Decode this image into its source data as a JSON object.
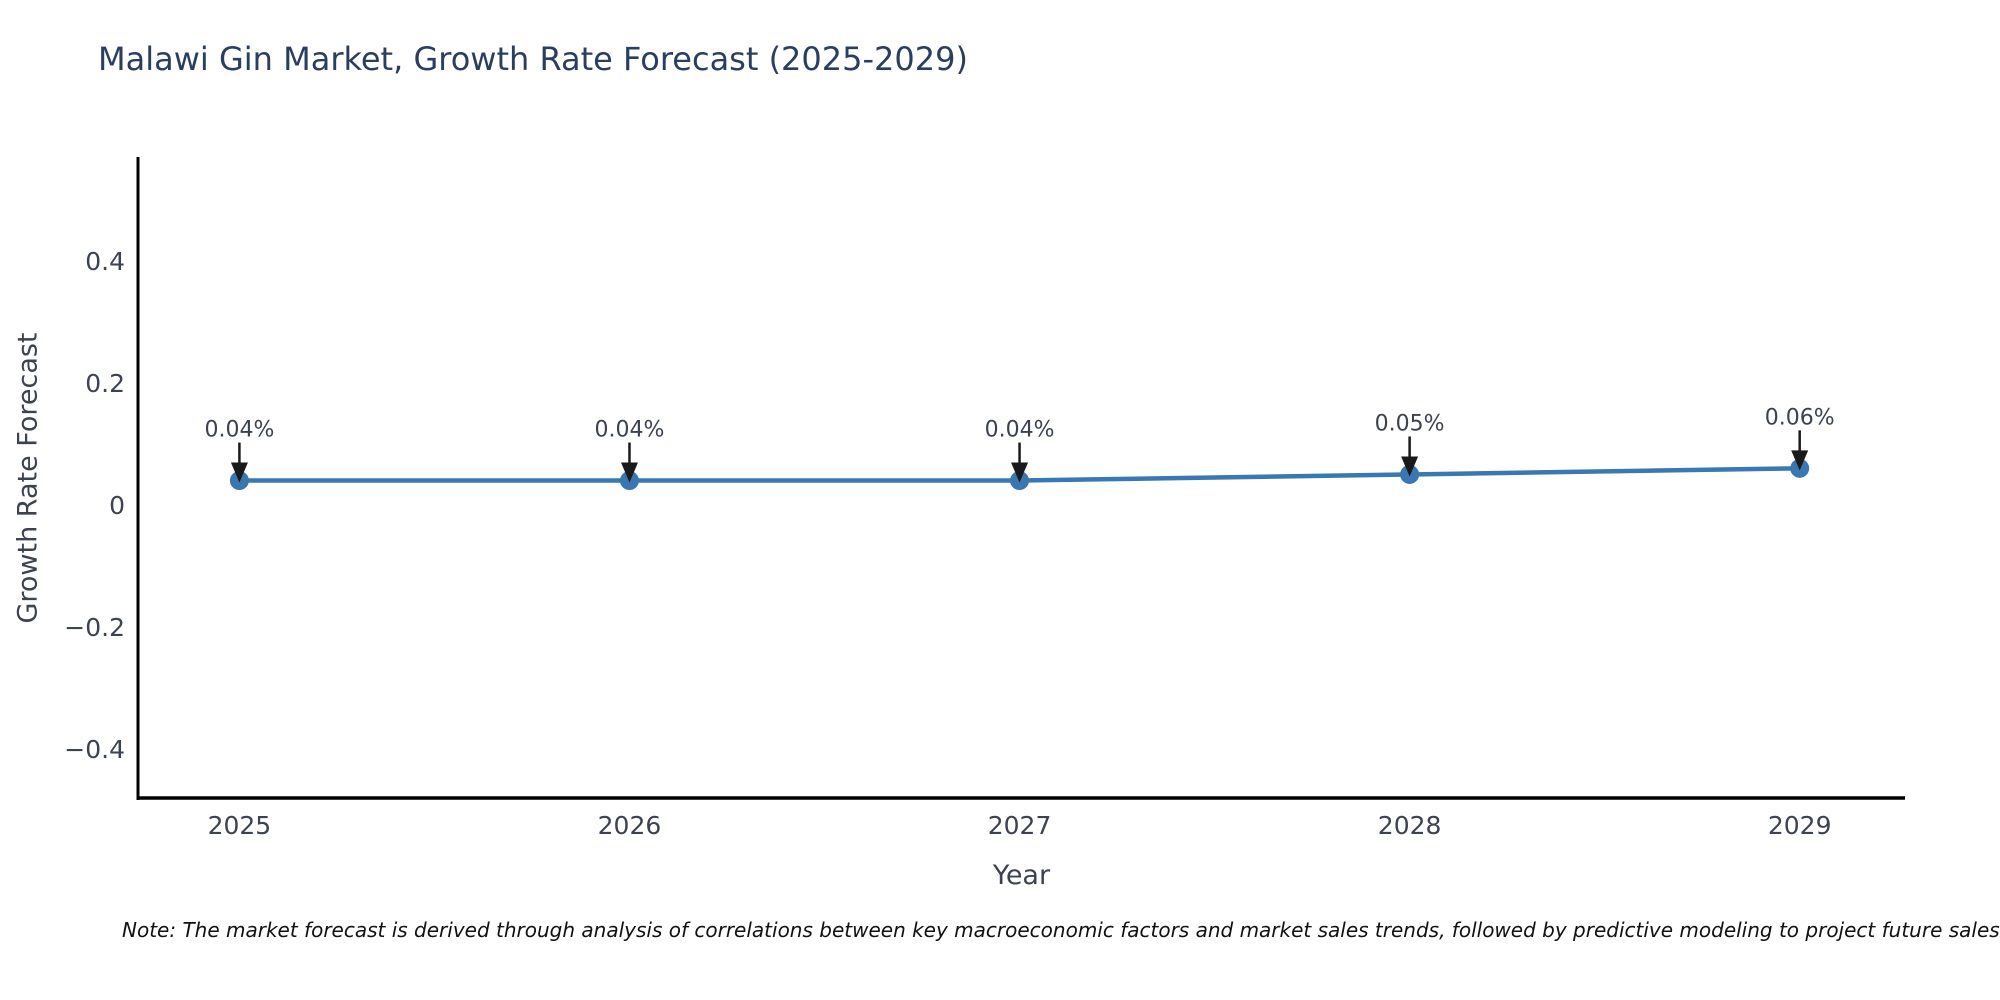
{
  "footnote": "Note: The market forecast is derived through analysis of correlations between key macroeconomic factors and market sales trends, followed by predictive modeling to project future sales",
  "chart_data": {
    "type": "line",
    "title": "Malawi Gin Market, Growth Rate Forecast (2025-2029)",
    "xlabel": "Year",
    "ylabel": "Growth Rate Forecast",
    "x": [
      2025,
      2026,
      2027,
      2028,
      2029
    ],
    "series": [
      {
        "name": "Growth Rate Forecast",
        "values": [
          0.04,
          0.04,
          0.04,
          0.05,
          0.06
        ]
      }
    ],
    "point_labels": [
      "0.04%",
      "0.04%",
      "0.04%",
      "0.05%",
      "0.06%"
    ],
    "xticks": [
      {
        "label": "2025",
        "value": 2025
      },
      {
        "label": "2026",
        "value": 2026
      },
      {
        "label": "2027",
        "value": 2027
      },
      {
        "label": "2028",
        "value": 2028
      },
      {
        "label": "2029",
        "value": 2029
      }
    ],
    "yticks": [
      {
        "label": "0.4",
        "value": 0.4
      },
      {
        "label": "0.2",
        "value": 0.2
      },
      {
        "label": "0",
        "value": 0
      },
      {
        "label": "−0.2",
        "value": -0.2
      },
      {
        "label": "−0.4",
        "value": -0.4
      }
    ],
    "xlim": [
      2024.74,
      2029.27
    ],
    "ylim": [
      -0.48,
      0.57
    ],
    "grid": false,
    "legend": "none",
    "colors": {
      "line": "#3878b4",
      "marker": "#3a76b0",
      "annotation_arrow": "#1a1a1a",
      "annotation_text": "#3b4350",
      "tick_text": "#3b4350",
      "axis_spine": "#000000",
      "title_text": "#2a3f5f"
    }
  }
}
